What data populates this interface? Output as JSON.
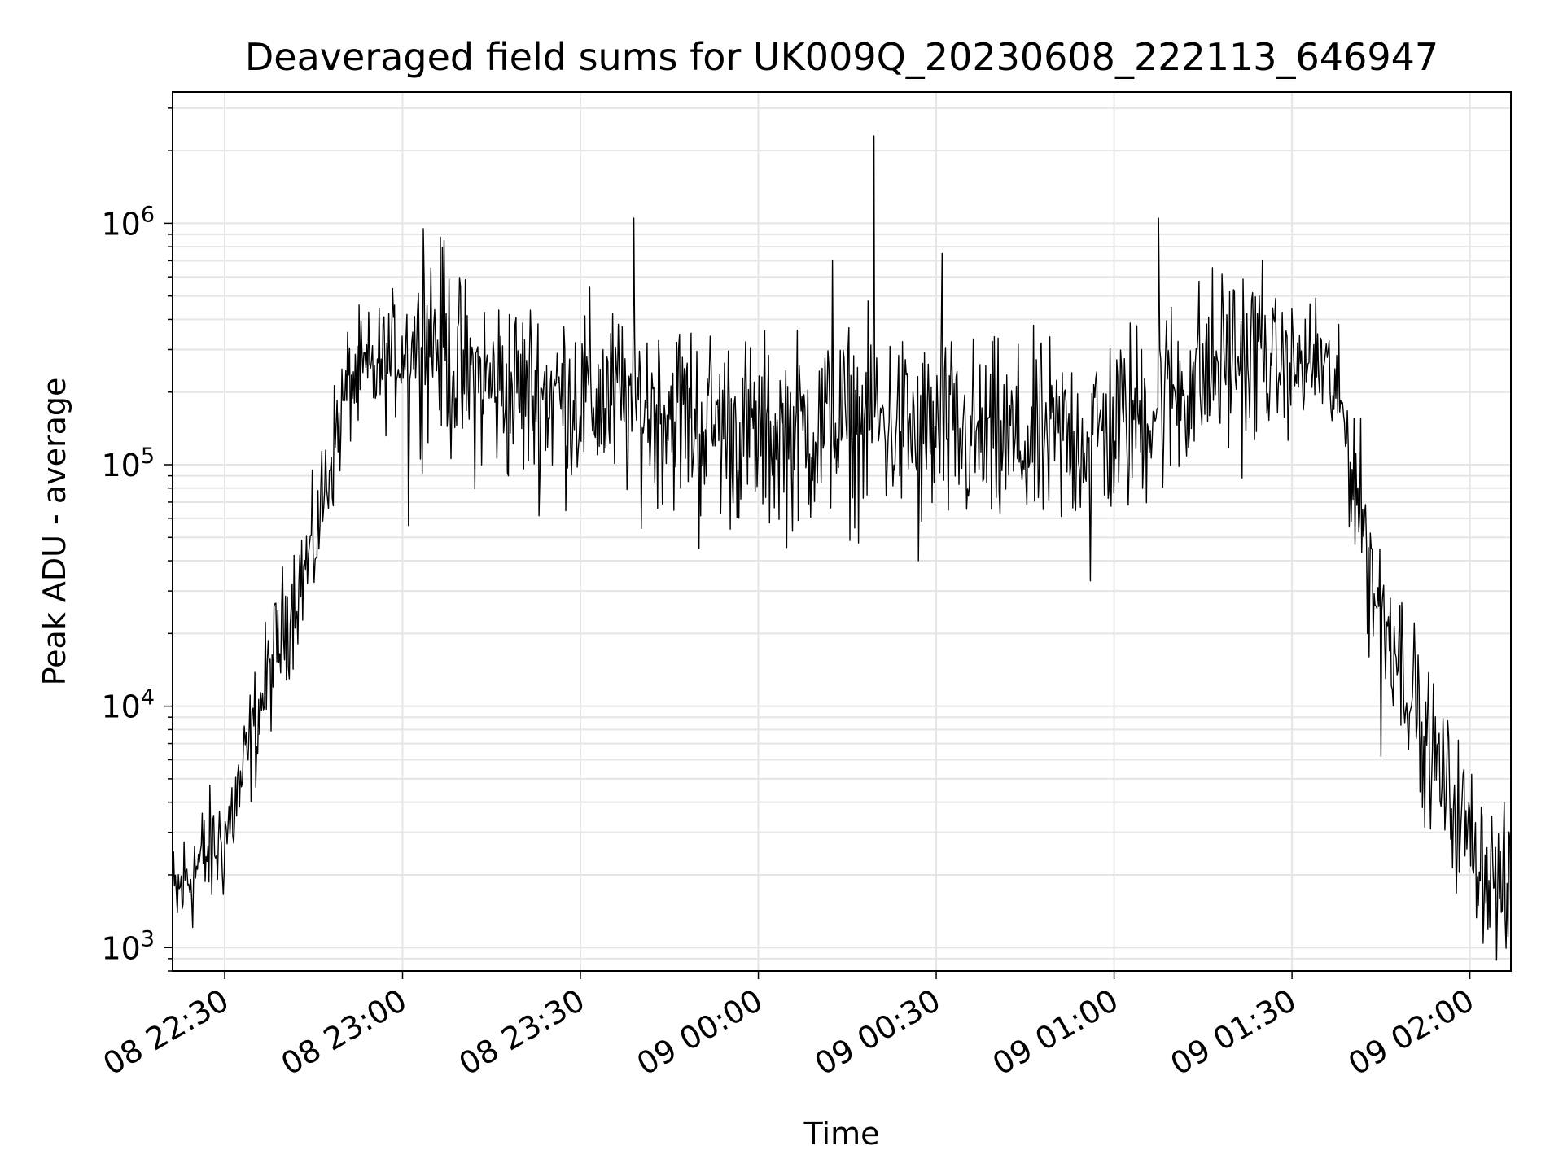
{
  "chart_data": {
    "type": "line",
    "title": "Deaveraged field sums for UK009Q_20230608_222113_646947",
    "xlabel": "Time",
    "ylabel": "Peak ADU - average",
    "yscale": "log",
    "ylim": [
      800,
      3500000
    ],
    "xlim": [
      "2023-06-08 22:21:13",
      "2023-06-09 02:06:55"
    ],
    "grid": true,
    "line_color": "#000000",
    "grid_color": "#e5e5e5",
    "x_tick_labels": [
      {
        "t": "2023-06-08 22:30:00",
        "label": "08 22:30"
      },
      {
        "t": "2023-06-08 23:00:00",
        "label": "08 23:00"
      },
      {
        "t": "2023-06-08 23:30:00",
        "label": "08 23:30"
      },
      {
        "t": "2023-06-09 00:00:00",
        "label": "09 00:00"
      },
      {
        "t": "2023-06-09 00:30:00",
        "label": "09 00:30"
      },
      {
        "t": "2023-06-09 01:00:00",
        "label": "09 01:00"
      },
      {
        "t": "2023-06-09 01:30:00",
        "label": "09 01:30"
      },
      {
        "t": "2023-06-09 02:00:00",
        "label": "09 02:00"
      }
    ],
    "y_tick_labels": [
      {
        "value": 1000,
        "base": "10",
        "exp": "3"
      },
      {
        "value": 10000,
        "base": "10",
        "exp": "4"
      },
      {
        "value": 100000,
        "base": "10",
        "exp": "5"
      },
      {
        "value": 1000000,
        "base": "10",
        "exp": "6"
      }
    ],
    "series": [
      {
        "x": [
          "2023-06-08 22:21:13",
          "2023-06-08 22:24:00",
          "2023-06-08 22:27:00",
          "2023-06-08 22:30:00",
          "2023-06-08 22:33:00",
          "2023-06-08 22:36:00",
          "2023-06-08 22:39:00",
          "2023-06-08 22:42:00",
          "2023-06-08 22:45:00",
          "2023-06-08 22:48:00",
          "2023-06-08 22:51:00",
          "2023-06-08 22:55:00",
          "2023-06-08 23:00:00",
          "2023-06-08 23:05:00",
          "2023-06-08 23:10:00",
          "2023-06-08 23:20:00",
          "2023-06-08 23:30:00",
          "2023-06-08 23:45:00",
          "2023-06-09 00:00:00",
          "2023-06-09 00:10:00",
          "2023-06-09 00:20:00",
          "2023-06-09 00:30:00",
          "2023-06-09 00:45:00",
          "2023-06-09 01:00:00",
          "2023-06-09 01:10:00",
          "2023-06-09 01:20:00",
          "2023-06-09 01:30:00",
          "2023-06-09 01:35:00",
          "2023-06-09 01:38:00",
          "2023-06-09 01:41:00",
          "2023-06-09 01:44:00",
          "2023-06-09 01:47:00",
          "2023-06-09 01:50:00",
          "2023-06-09 01:53:00",
          "2023-06-09 01:56:00",
          "2023-06-09 01:59:00",
          "2023-06-09 02:02:00",
          "2023-06-09 02:06:55"
        ],
        "y": [
          1500,
          2000,
          2400,
          2800,
          5000,
          10000,
          18000,
          30000,
          45000,
          110000,
          220000,
          240000,
          300000,
          350000,
          230000,
          200000,
          190000,
          170000,
          130000,
          140000,
          150000,
          130000,
          120000,
          140000,
          200000,
          280000,
          250000,
          260000,
          180000,
          80000,
          30000,
          20000,
          12000,
          7000,
          4500,
          3200,
          2300,
          1500
        ]
      }
    ],
    "spikes": [
      {
        "x": "2023-06-08 23:03:30",
        "y": 950000
      },
      {
        "x": "2023-06-08 23:07:00",
        "y": 850000
      },
      {
        "x": "2023-06-08 23:39:00",
        "y": 1050000
      },
      {
        "x": "2023-06-09 00:12:30",
        "y": 700000
      },
      {
        "x": "2023-06-09 00:19:30",
        "y": 2300000
      },
      {
        "x": "2023-06-09 00:31:00",
        "y": 750000
      },
      {
        "x": "2023-06-09 01:07:30",
        "y": 1050000
      },
      {
        "x": "2023-06-09 01:25:00",
        "y": 700000
      },
      {
        "x": "2023-06-09 01:34:00",
        "y": 490000
      },
      {
        "x": "2023-06-08 23:01:00",
        "y": 56000
      },
      {
        "x": "2023-06-08 23:50:00",
        "y": 45000
      },
      {
        "x": "2023-06-09 00:27:00",
        "y": 40000
      },
      {
        "x": "2023-06-09 00:56:00",
        "y": 33000
      },
      {
        "x": "2023-06-09 01:43:00",
        "y": 16000
      },
      {
        "x": "2023-06-09 01:45:00",
        "y": 6200
      },
      {
        "x": "2023-06-09 01:52:00",
        "y": 3800
      }
    ]
  }
}
